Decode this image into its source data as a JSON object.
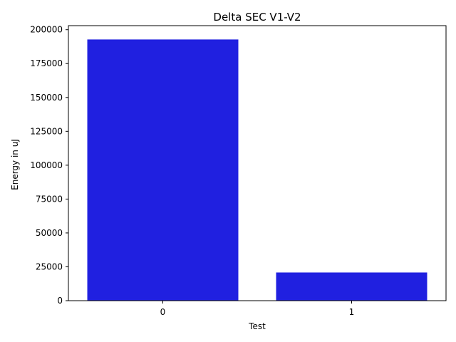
{
  "chart_data": {
    "type": "bar",
    "title": "Delta SEC V1-V2",
    "xlabel": "Test",
    "ylabel": "Energy in uJ",
    "categories": [
      "0",
      "1"
    ],
    "values": [
      192800,
      20800
    ],
    "ylim": [
      0,
      203000
    ],
    "yticks": [
      0,
      25000,
      50000,
      75000,
      100000,
      125000,
      150000,
      175000,
      200000
    ],
    "bar_color": "#2020e0",
    "grid": false,
    "legend": "none"
  }
}
